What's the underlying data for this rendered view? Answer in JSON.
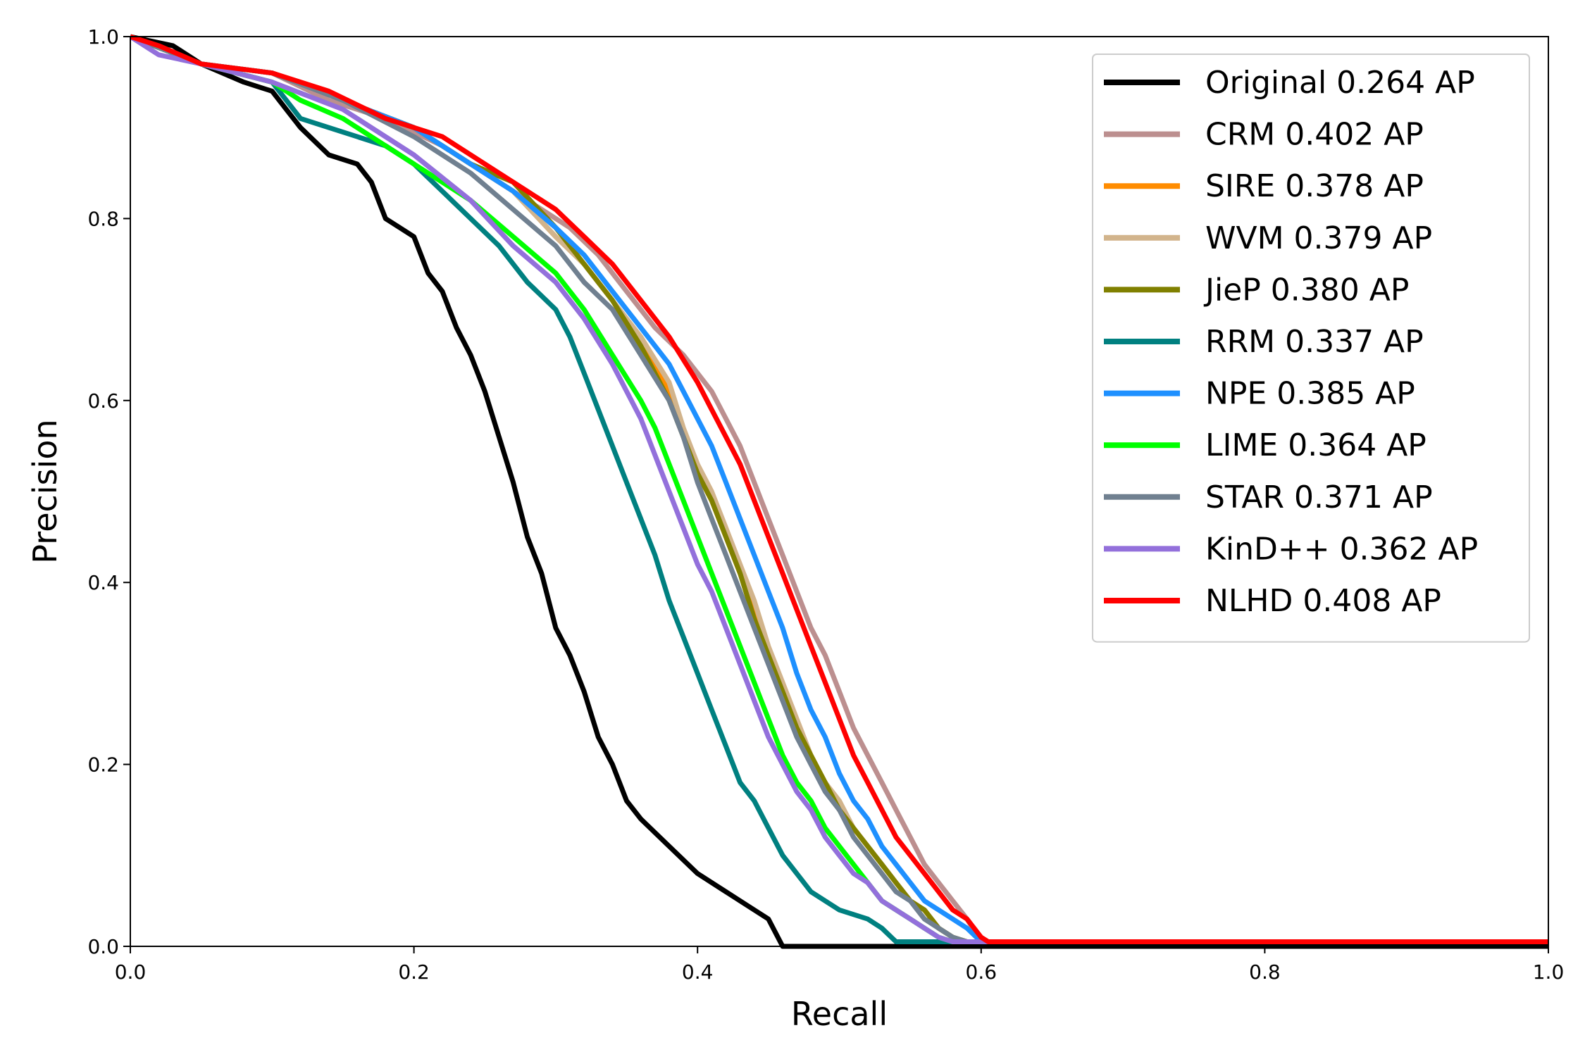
{
  "chart_data": {
    "type": "line",
    "title": "",
    "xlabel": "Recall",
    "ylabel": "Precision",
    "xlim": [
      0.0,
      1.0
    ],
    "ylim": [
      0.0,
      1.0
    ],
    "xticks": [
      "0.0",
      "0.2",
      "0.4",
      "0.6",
      "0.8",
      "1.0"
    ],
    "yticks": [
      "0.0",
      "0.2",
      "0.4",
      "0.6",
      "0.8",
      "1.0"
    ],
    "grid": false,
    "legend_position": "top-right",
    "series": [
      {
        "name": "Original 0.264 AP",
        "color": "#000000",
        "x": [
          0.0,
          0.03,
          0.05,
          0.08,
          0.1,
          0.11,
          0.12,
          0.14,
          0.16,
          0.17,
          0.18,
          0.19,
          0.2,
          0.21,
          0.22,
          0.23,
          0.24,
          0.25,
          0.26,
          0.27,
          0.28,
          0.29,
          0.3,
          0.31,
          0.32,
          0.33,
          0.34,
          0.35,
          0.36,
          0.38,
          0.4,
          0.42,
          0.44,
          0.45,
          0.46,
          0.47,
          1.0
        ],
        "y": [
          1.0,
          0.99,
          0.97,
          0.95,
          0.94,
          0.92,
          0.9,
          0.87,
          0.86,
          0.84,
          0.8,
          0.79,
          0.78,
          0.74,
          0.72,
          0.68,
          0.65,
          0.61,
          0.56,
          0.51,
          0.45,
          0.41,
          0.35,
          0.32,
          0.28,
          0.23,
          0.2,
          0.16,
          0.14,
          0.11,
          0.08,
          0.06,
          0.04,
          0.03,
          0.0,
          0.0,
          0.0
        ]
      },
      {
        "name": "CRM 0.402 AP",
        "color": "#bc8f8f",
        "x": [
          0.0,
          0.05,
          0.1,
          0.14,
          0.18,
          0.22,
          0.26,
          0.29,
          0.31,
          0.33,
          0.35,
          0.37,
          0.39,
          0.4,
          0.41,
          0.42,
          0.43,
          0.44,
          0.45,
          0.46,
          0.47,
          0.48,
          0.49,
          0.5,
          0.51,
          0.52,
          0.53,
          0.54,
          0.55,
          0.56,
          0.57,
          0.58,
          0.59,
          0.6,
          1.0
        ],
        "y": [
          1.0,
          0.97,
          0.96,
          0.93,
          0.91,
          0.88,
          0.84,
          0.81,
          0.79,
          0.76,
          0.72,
          0.68,
          0.65,
          0.63,
          0.61,
          0.58,
          0.55,
          0.51,
          0.47,
          0.43,
          0.39,
          0.35,
          0.32,
          0.28,
          0.24,
          0.21,
          0.18,
          0.15,
          0.12,
          0.09,
          0.07,
          0.05,
          0.03,
          0.005,
          0.005
        ]
      },
      {
        "name": "SIRE 0.378 AP",
        "color": "#ff8c00",
        "x": [
          0.0,
          0.05,
          0.1,
          0.15,
          0.2,
          0.24,
          0.27,
          0.3,
          0.32,
          0.34,
          0.36,
          0.38,
          0.39,
          0.4,
          0.41,
          0.42,
          0.43,
          0.44,
          0.45,
          0.46,
          0.47,
          0.48,
          0.49,
          0.5,
          0.51,
          0.52,
          0.53,
          0.54,
          0.55,
          0.56,
          0.57,
          0.58,
          0.59,
          1.0
        ],
        "y": [
          1.0,
          0.97,
          0.96,
          0.93,
          0.9,
          0.86,
          0.83,
          0.78,
          0.75,
          0.71,
          0.66,
          0.61,
          0.56,
          0.52,
          0.49,
          0.45,
          0.41,
          0.37,
          0.32,
          0.28,
          0.24,
          0.21,
          0.18,
          0.15,
          0.13,
          0.11,
          0.09,
          0.07,
          0.05,
          0.04,
          0.02,
          0.01,
          0.005,
          0.005
        ]
      },
      {
        "name": "WVM 0.379 AP",
        "color": "#d2b48c",
        "x": [
          0.0,
          0.05,
          0.1,
          0.15,
          0.2,
          0.24,
          0.27,
          0.3,
          0.32,
          0.34,
          0.36,
          0.38,
          0.39,
          0.4,
          0.41,
          0.42,
          0.43,
          0.44,
          0.45,
          0.46,
          0.47,
          0.48,
          0.49,
          0.5,
          0.51,
          0.52,
          0.53,
          0.54,
          0.55,
          0.56,
          0.57,
          0.58,
          0.59,
          1.0
        ],
        "y": [
          1.0,
          0.97,
          0.96,
          0.93,
          0.9,
          0.86,
          0.83,
          0.78,
          0.75,
          0.71,
          0.67,
          0.62,
          0.57,
          0.53,
          0.5,
          0.46,
          0.42,
          0.38,
          0.33,
          0.29,
          0.25,
          0.21,
          0.18,
          0.16,
          0.13,
          0.11,
          0.09,
          0.07,
          0.05,
          0.04,
          0.02,
          0.01,
          0.005,
          0.005
        ]
      },
      {
        "name": "JieP 0.380 AP",
        "color": "#808000",
        "x": [
          0.0,
          0.05,
          0.1,
          0.15,
          0.2,
          0.24,
          0.27,
          0.3,
          0.32,
          0.34,
          0.36,
          0.38,
          0.39,
          0.4,
          0.41,
          0.42,
          0.43,
          0.44,
          0.45,
          0.46,
          0.47,
          0.48,
          0.49,
          0.5,
          0.51,
          0.52,
          0.53,
          0.54,
          0.55,
          0.56,
          0.57,
          0.58,
          0.59,
          1.0
        ],
        "y": [
          1.0,
          0.97,
          0.96,
          0.93,
          0.9,
          0.86,
          0.84,
          0.79,
          0.75,
          0.71,
          0.66,
          0.6,
          0.56,
          0.52,
          0.49,
          0.45,
          0.41,
          0.36,
          0.32,
          0.28,
          0.24,
          0.21,
          0.18,
          0.15,
          0.13,
          0.11,
          0.09,
          0.07,
          0.05,
          0.04,
          0.02,
          0.01,
          0.005,
          0.005
        ]
      },
      {
        "name": "RRM 0.337 AP",
        "color": "#008080",
        "x": [
          0.0,
          0.05,
          0.1,
          0.11,
          0.12,
          0.14,
          0.16,
          0.18,
          0.2,
          0.22,
          0.24,
          0.26,
          0.28,
          0.3,
          0.31,
          0.32,
          0.33,
          0.34,
          0.35,
          0.36,
          0.37,
          0.38,
          0.39,
          0.4,
          0.41,
          0.42,
          0.43,
          0.44,
          0.45,
          0.46,
          0.47,
          0.48,
          0.5,
          0.52,
          0.53,
          0.54,
          0.55,
          1.0
        ],
        "y": [
          1.0,
          0.97,
          0.95,
          0.93,
          0.91,
          0.9,
          0.89,
          0.88,
          0.86,
          0.83,
          0.8,
          0.77,
          0.73,
          0.7,
          0.67,
          0.63,
          0.59,
          0.55,
          0.51,
          0.47,
          0.43,
          0.38,
          0.34,
          0.3,
          0.26,
          0.22,
          0.18,
          0.16,
          0.13,
          0.1,
          0.08,
          0.06,
          0.04,
          0.03,
          0.02,
          0.005,
          0.005,
          0.005
        ]
      },
      {
        "name": "NPE 0.385 AP",
        "color": "#1e90ff",
        "x": [
          0.0,
          0.05,
          0.1,
          0.15,
          0.2,
          0.24,
          0.27,
          0.3,
          0.32,
          0.34,
          0.36,
          0.38,
          0.39,
          0.4,
          0.41,
          0.42,
          0.43,
          0.44,
          0.45,
          0.46,
          0.47,
          0.48,
          0.49,
          0.5,
          0.51,
          0.52,
          0.53,
          0.54,
          0.55,
          0.56,
          0.57,
          0.58,
          0.59,
          0.6,
          1.0
        ],
        "y": [
          1.0,
          0.97,
          0.96,
          0.93,
          0.9,
          0.86,
          0.83,
          0.79,
          0.76,
          0.72,
          0.68,
          0.64,
          0.61,
          0.58,
          0.55,
          0.51,
          0.47,
          0.43,
          0.39,
          0.35,
          0.3,
          0.26,
          0.23,
          0.19,
          0.16,
          0.14,
          0.11,
          0.09,
          0.07,
          0.05,
          0.04,
          0.03,
          0.02,
          0.005,
          0.005
        ]
      },
      {
        "name": "LIME 0.364 AP",
        "color": "#00ff00",
        "x": [
          0.0,
          0.05,
          0.1,
          0.12,
          0.15,
          0.2,
          0.24,
          0.27,
          0.3,
          0.32,
          0.34,
          0.36,
          0.37,
          0.38,
          0.39,
          0.4,
          0.41,
          0.42,
          0.43,
          0.44,
          0.45,
          0.46,
          0.47,
          0.48,
          0.49,
          0.5,
          0.51,
          0.52,
          0.53,
          0.54,
          0.55,
          0.56,
          0.57,
          0.58,
          1.0
        ],
        "y": [
          1.0,
          0.97,
          0.95,
          0.93,
          0.91,
          0.86,
          0.82,
          0.78,
          0.74,
          0.7,
          0.65,
          0.6,
          0.57,
          0.53,
          0.49,
          0.45,
          0.41,
          0.37,
          0.33,
          0.29,
          0.25,
          0.21,
          0.18,
          0.16,
          0.13,
          0.11,
          0.09,
          0.07,
          0.05,
          0.04,
          0.03,
          0.02,
          0.01,
          0.005,
          0.005
        ]
      },
      {
        "name": "STAR 0.371 AP",
        "color": "#708090",
        "x": [
          0.0,
          0.05,
          0.1,
          0.15,
          0.2,
          0.24,
          0.27,
          0.3,
          0.32,
          0.34,
          0.36,
          0.38,
          0.39,
          0.4,
          0.41,
          0.42,
          0.43,
          0.44,
          0.45,
          0.46,
          0.47,
          0.48,
          0.49,
          0.5,
          0.51,
          0.52,
          0.53,
          0.54,
          0.55,
          0.56,
          0.57,
          0.58,
          0.59,
          1.0
        ],
        "y": [
          1.0,
          0.97,
          0.96,
          0.93,
          0.89,
          0.85,
          0.81,
          0.77,
          0.73,
          0.7,
          0.65,
          0.6,
          0.56,
          0.51,
          0.47,
          0.43,
          0.39,
          0.35,
          0.31,
          0.27,
          0.23,
          0.2,
          0.17,
          0.15,
          0.12,
          0.1,
          0.08,
          0.06,
          0.05,
          0.03,
          0.02,
          0.01,
          0.005,
          0.005
        ]
      },
      {
        "name": "KinD++ 0.362 AP",
        "color": "#9370db",
        "x": [
          0.0,
          0.02,
          0.05,
          0.1,
          0.15,
          0.2,
          0.24,
          0.27,
          0.3,
          0.32,
          0.34,
          0.36,
          0.37,
          0.38,
          0.39,
          0.4,
          0.41,
          0.42,
          0.43,
          0.44,
          0.45,
          0.46,
          0.47,
          0.48,
          0.49,
          0.5,
          0.51,
          0.52,
          0.53,
          0.54,
          0.55,
          0.56,
          0.57,
          0.58,
          1.0
        ],
        "y": [
          1.0,
          0.98,
          0.97,
          0.95,
          0.92,
          0.87,
          0.82,
          0.77,
          0.73,
          0.69,
          0.64,
          0.58,
          0.54,
          0.5,
          0.46,
          0.42,
          0.39,
          0.35,
          0.31,
          0.27,
          0.23,
          0.2,
          0.17,
          0.15,
          0.12,
          0.1,
          0.08,
          0.07,
          0.05,
          0.04,
          0.03,
          0.02,
          0.01,
          0.005,
          0.005
        ]
      },
      {
        "name": "NLHD 0.408 AP",
        "color": "#ff0000",
        "x": [
          0.0,
          0.02,
          0.05,
          0.1,
          0.14,
          0.18,
          0.22,
          0.26,
          0.28,
          0.3,
          0.32,
          0.34,
          0.36,
          0.38,
          0.4,
          0.41,
          0.42,
          0.43,
          0.44,
          0.45,
          0.46,
          0.47,
          0.48,
          0.49,
          0.5,
          0.51,
          0.52,
          0.53,
          0.54,
          0.55,
          0.56,
          0.57,
          0.58,
          0.59,
          0.6,
          0.605,
          1.0
        ],
        "y": [
          1.0,
          0.99,
          0.97,
          0.96,
          0.94,
          0.91,
          0.89,
          0.85,
          0.83,
          0.81,
          0.78,
          0.75,
          0.71,
          0.67,
          0.62,
          0.59,
          0.56,
          0.53,
          0.49,
          0.45,
          0.41,
          0.37,
          0.33,
          0.29,
          0.25,
          0.21,
          0.18,
          0.15,
          0.12,
          0.1,
          0.08,
          0.06,
          0.04,
          0.03,
          0.01,
          0.005,
          0.005
        ]
      }
    ]
  }
}
